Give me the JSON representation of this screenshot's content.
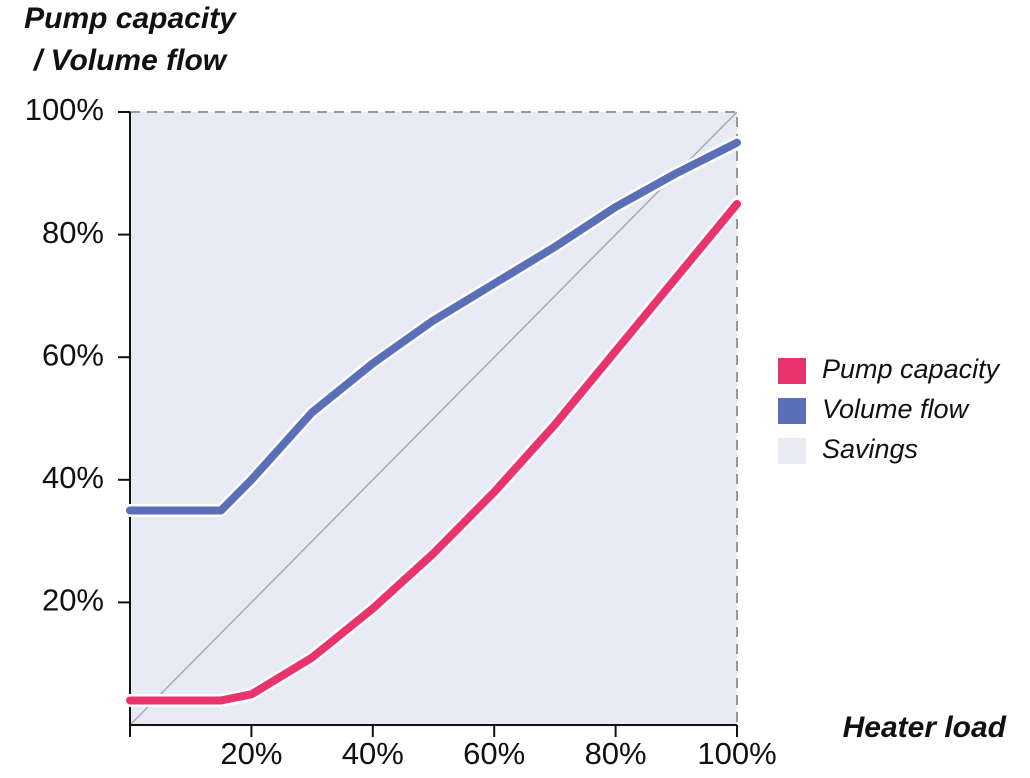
{
  "chart_data": {
    "type": "line",
    "y_label": [
      "Pump capacity",
      "/ Volume flow"
    ],
    "x_label": "Heater load",
    "x": [
      0,
      15,
      20,
      30,
      40,
      50,
      60,
      70,
      80,
      90,
      100
    ],
    "series": [
      {
        "name": "Pump capacity",
        "color": "#e8336d",
        "values": [
          4,
          4,
          5,
          11,
          19,
          28,
          38,
          49,
          61,
          73,
          85
        ]
      },
      {
        "name": "Volume flow",
        "color": "#5a6fb8",
        "values": [
          35,
          35,
          40,
          51,
          59,
          66,
          72,
          78,
          84.5,
          90,
          95
        ]
      }
    ],
    "area": {
      "name": "Savings",
      "color": "#e8ebf5"
    },
    "xlim": [
      0,
      100
    ],
    "ylim": [
      0,
      100
    ],
    "xticks": [
      {
        "value": 20,
        "label": "20%"
      },
      {
        "value": 40,
        "label": "40%"
      },
      {
        "value": 60,
        "label": "60%"
      },
      {
        "value": 80,
        "label": "80%"
      },
      {
        "value": 100,
        "label": "100%"
      }
    ],
    "yticks": [
      {
        "value": 20,
        "label": "20%"
      },
      {
        "value": 40,
        "label": "40%"
      },
      {
        "value": 60,
        "label": "60%"
      },
      {
        "value": 80,
        "label": "80%"
      },
      {
        "value": 100,
        "label": "100%"
      }
    ],
    "legend": "right"
  }
}
